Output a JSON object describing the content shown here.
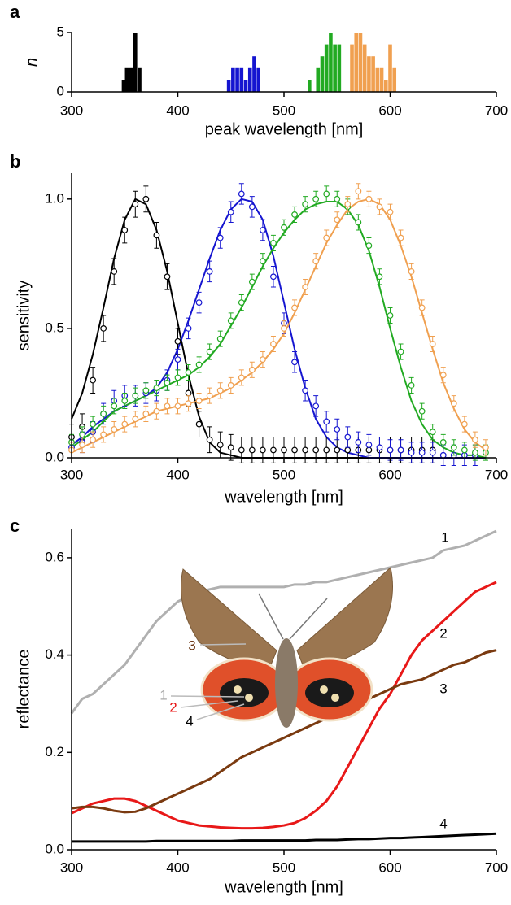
{
  "chart_data": [
    {
      "type": "bar",
      "label": "a",
      "xlabel": "peak wavelength [nm]",
      "ylabel": "n",
      "xlim": [
        300,
        700
      ],
      "xticks": [
        300,
        400,
        500,
        600,
        700
      ],
      "ylim": [
        0,
        5
      ],
      "yticks": [
        0,
        5
      ],
      "series": [
        {
          "color": "#000000",
          "x": [
            349,
            352,
            356,
            360,
            364
          ],
          "values": [
            1,
            2,
            2,
            5,
            2
          ]
        },
        {
          "color": "#1515d0",
          "x": [
            448,
            452,
            456,
            460,
            464,
            468,
            472,
            476
          ],
          "values": [
            1,
            2,
            2,
            2,
            1,
            2,
            3,
            2
          ]
        },
        {
          "color": "#22aa22",
          "x": [
            524,
            532,
            536,
            540,
            544,
            548,
            552
          ],
          "values": [
            1,
            2,
            3,
            4,
            5,
            4,
            4
          ]
        },
        {
          "color": "#f0a050",
          "x": [
            564,
            568,
            572,
            576,
            580,
            584,
            588,
            592,
            596,
            600,
            604
          ],
          "values": [
            4,
            5,
            5,
            4,
            3,
            3,
            2,
            2,
            1,
            4,
            2
          ]
        }
      ]
    },
    {
      "type": "line",
      "label": "b",
      "xlabel": "wavelength [nm]",
      "ylabel": "sensitivity",
      "xlim": [
        300,
        700
      ],
      "xticks": [
        300,
        400,
        500,
        600,
        700
      ],
      "ylim": [
        0,
        1.1
      ],
      "yticks": [
        {
          "value": 0,
          "label": "0.0"
        },
        0.5,
        {
          "value": 1,
          "label": "1.0"
        }
      ],
      "x": [
        300,
        310,
        320,
        330,
        340,
        350,
        360,
        370,
        380,
        390,
        400,
        410,
        420,
        430,
        440,
        450,
        460,
        470,
        480,
        490,
        500,
        510,
        520,
        530,
        540,
        550,
        560,
        570,
        580,
        590,
        600,
        610,
        620,
        630,
        640,
        650,
        660,
        670,
        680,
        690
      ],
      "series": [
        {
          "color": "#000000",
          "values": [
            0.15,
            0.25,
            0.4,
            0.58,
            0.77,
            0.92,
            1.0,
            0.98,
            0.88,
            0.72,
            0.52,
            0.32,
            0.16,
            0.06,
            0.02,
            0.01,
            0,
            0,
            0,
            0,
            0,
            0,
            0,
            0,
            0,
            0,
            0,
            0,
            0,
            0,
            0,
            0,
            0,
            0,
            0,
            0,
            0,
            0,
            0,
            0
          ]
        },
        {
          "color": "#1515d0",
          "values": [
            0.05,
            0.08,
            0.12,
            0.15,
            0.18,
            0.2,
            0.22,
            0.24,
            0.27,
            0.33,
            0.42,
            0.53,
            0.65,
            0.77,
            0.88,
            0.96,
            1.0,
            0.99,
            0.92,
            0.78,
            0.6,
            0.42,
            0.27,
            0.15,
            0.08,
            0.04,
            0.02,
            0.01,
            0,
            0,
            0,
            0,
            0,
            0,
            0,
            0,
            0,
            0,
            0,
            0
          ]
        },
        {
          "color": "#22aa22",
          "values": [
            0.04,
            0.07,
            0.1,
            0.14,
            0.18,
            0.2,
            0.22,
            0.24,
            0.26,
            0.28,
            0.3,
            0.32,
            0.35,
            0.39,
            0.44,
            0.51,
            0.58,
            0.66,
            0.74,
            0.81,
            0.87,
            0.92,
            0.96,
            0.98,
            0.99,
            0.99,
            0.96,
            0.9,
            0.8,
            0.66,
            0.5,
            0.35,
            0.22,
            0.13,
            0.07,
            0.04,
            0.02,
            0.01,
            0.01,
            0
          ]
        },
        {
          "color": "#f0a050",
          "values": [
            0.02,
            0.04,
            0.06,
            0.08,
            0.1,
            0.12,
            0.14,
            0.16,
            0.18,
            0.19,
            0.2,
            0.21,
            0.22,
            0.23,
            0.25,
            0.27,
            0.3,
            0.33,
            0.37,
            0.42,
            0.48,
            0.56,
            0.65,
            0.74,
            0.83,
            0.9,
            0.96,
            0.99,
            1.0,
            0.98,
            0.92,
            0.82,
            0.7,
            0.56,
            0.42,
            0.29,
            0.19,
            0.11,
            0.06,
            0.03
          ]
        }
      ],
      "points": [
        {
          "color": "#000000",
          "error": 0.05,
          "values": [
            0.08,
            0.12,
            0.3,
            0.5,
            0.72,
            0.88,
            0.98,
            1.0,
            0.86,
            0.7,
            0.45,
            0.25,
            0.13,
            0.07,
            0.05,
            0.04,
            0.03,
            0.03,
            0.03,
            0.03,
            0.03,
            0.03,
            0.03,
            0.03,
            0.03,
            0.03,
            0.03,
            0.03,
            0.03,
            0.03,
            0.03,
            0.03,
            0.03,
            0.03,
            0.03,
            null,
            null,
            null,
            null,
            null
          ]
        },
        {
          "color": "#1515d0",
          "error": 0.04,
          "values": [
            0.04,
            0.06,
            0.1,
            0.17,
            0.22,
            0.24,
            0.24,
            0.25,
            0.26,
            0.3,
            0.38,
            0.5,
            0.6,
            0.72,
            0.85,
            0.95,
            1.02,
            0.97,
            0.88,
            0.7,
            0.52,
            0.37,
            0.26,
            0.2,
            0.14,
            0.11,
            0.08,
            0.06,
            0.05,
            0.04,
            0.03,
            0.03,
            0.02,
            0.02,
            0.02,
            0.01,
            0.01,
            0.01,
            0.01,
            null
          ]
        },
        {
          "color": "#22aa22",
          "error": 0.03,
          "values": [
            0.06,
            0.09,
            0.13,
            0.17,
            0.2,
            0.22,
            0.24,
            0.26,
            0.27,
            0.29,
            0.31,
            0.33,
            0.36,
            0.41,
            0.46,
            0.53,
            0.6,
            0.68,
            0.76,
            0.83,
            0.89,
            0.94,
            0.98,
            1.0,
            1.02,
            1.0,
            0.97,
            0.91,
            0.82,
            0.7,
            0.55,
            0.41,
            0.28,
            0.18,
            0.1,
            0.06,
            0.04,
            0.03,
            0.02,
            0.02
          ]
        },
        {
          "color": "#f0a050",
          "error": 0.03,
          "values": [
            0.03,
            0.05,
            0.07,
            0.09,
            0.11,
            0.13,
            0.15,
            0.17,
            0.18,
            0.2,
            0.2,
            0.21,
            0.22,
            0.24,
            0.26,
            0.28,
            0.31,
            0.34,
            0.38,
            0.44,
            0.5,
            0.58,
            0.66,
            0.76,
            0.85,
            0.92,
            0.98,
            1.03,
            1.0,
            0.97,
            0.95,
            0.85,
            0.72,
            0.58,
            0.44,
            0.32,
            0.21,
            0.13,
            0.07,
            0.04
          ]
        }
      ]
    },
    {
      "type": "line",
      "label": "c",
      "xlabel": "wavelength [nm]",
      "ylabel": "reflectance",
      "xlim": [
        300,
        700
      ],
      "xticks": [
        300,
        400,
        500,
        600,
        700
      ],
      "ylim": [
        0,
        0.66
      ],
      "yticks": [
        {
          "value": 0,
          "label": "0.0"
        },
        0.2,
        0.4,
        0.6
      ],
      "x": [
        300,
        310,
        320,
        330,
        340,
        350,
        360,
        370,
        380,
        390,
        400,
        410,
        420,
        430,
        440,
        450,
        460,
        470,
        480,
        490,
        500,
        510,
        520,
        530,
        540,
        550,
        560,
        570,
        580,
        590,
        600,
        610,
        620,
        630,
        640,
        650,
        660,
        670,
        680,
        690,
        700
      ],
      "series": [
        {
          "name": "1",
          "color": "#b0b0b0",
          "values": [
            0.28,
            0.31,
            0.32,
            0.34,
            0.36,
            0.38,
            0.41,
            0.44,
            0.47,
            0.49,
            0.51,
            0.52,
            0.53,
            0.535,
            0.54,
            0.54,
            0.54,
            0.54,
            0.54,
            0.54,
            0.54,
            0.545,
            0.545,
            0.55,
            0.55,
            0.555,
            0.56,
            0.565,
            0.57,
            0.575,
            0.58,
            0.585,
            0.59,
            0.595,
            0.6,
            0.615,
            0.62,
            0.625,
            0.635,
            0.645,
            0.655
          ]
        },
        {
          "name": "2",
          "color": "#e81818",
          "values": [
            0.075,
            0.085,
            0.095,
            0.1,
            0.105,
            0.105,
            0.1,
            0.09,
            0.08,
            0.07,
            0.06,
            0.055,
            0.05,
            0.048,
            0.046,
            0.045,
            0.044,
            0.044,
            0.045,
            0.047,
            0.05,
            0.055,
            0.065,
            0.08,
            0.1,
            0.13,
            0.17,
            0.21,
            0.25,
            0.29,
            0.32,
            0.36,
            0.4,
            0.43,
            0.45,
            0.47,
            0.49,
            0.51,
            0.53,
            0.54,
            0.55
          ]
        },
        {
          "name": "3",
          "color": "#7a3a10",
          "values": [
            0.085,
            0.088,
            0.088,
            0.085,
            0.08,
            0.077,
            0.078,
            0.085,
            0.095,
            0.105,
            0.115,
            0.125,
            0.135,
            0.145,
            0.16,
            0.175,
            0.19,
            0.2,
            0.21,
            0.22,
            0.23,
            0.24,
            0.25,
            0.26,
            0.27,
            0.28,
            0.29,
            0.3,
            0.31,
            0.32,
            0.33,
            0.34,
            0.345,
            0.35,
            0.36,
            0.37,
            0.38,
            0.385,
            0.395,
            0.405,
            0.41
          ]
        },
        {
          "name": "4",
          "color": "#000000",
          "values": [
            0.017,
            0.017,
            0.017,
            0.017,
            0.017,
            0.017,
            0.017,
            0.017,
            0.018,
            0.018,
            0.018,
            0.018,
            0.018,
            0.018,
            0.018,
            0.018,
            0.019,
            0.019,
            0.019,
            0.019,
            0.019,
            0.019,
            0.019,
            0.02,
            0.02,
            0.02,
            0.021,
            0.022,
            0.022,
            0.023,
            0.024,
            0.024,
            0.025,
            0.026,
            0.027,
            0.028,
            0.029,
            0.03,
            0.031,
            0.032,
            0.033
          ]
        }
      ]
    }
  ]
}
